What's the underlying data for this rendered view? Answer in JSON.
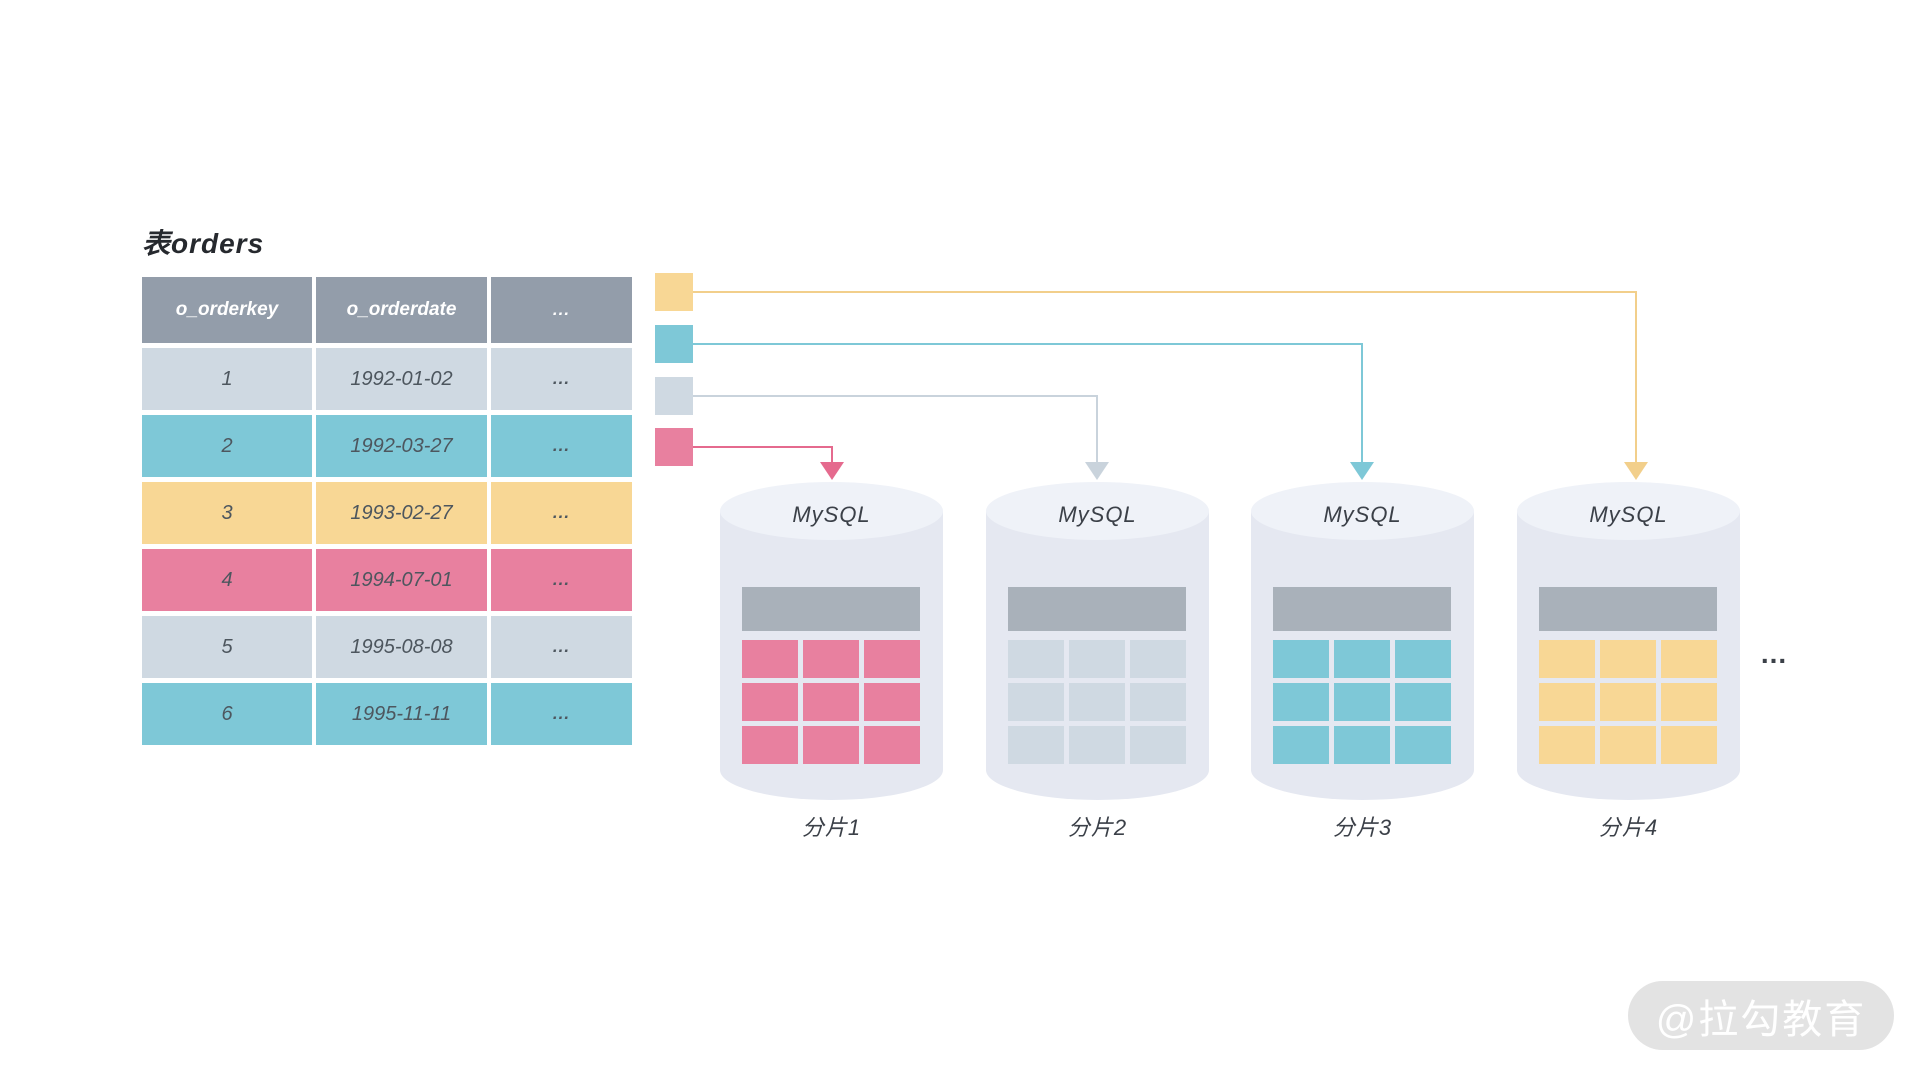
{
  "title": "表orders",
  "table": {
    "headers": [
      "o_orderkey",
      "o_orderdate",
      "..."
    ],
    "rows": [
      {
        "orderkey": "1",
        "orderdate": "1992-01-02",
        "more": "...",
        "color": "lightgray"
      },
      {
        "orderkey": "2",
        "orderdate": "1992-03-27",
        "more": "...",
        "color": "teal"
      },
      {
        "orderkey": "3",
        "orderdate": "1993-02-27",
        "more": "...",
        "color": "yellow"
      },
      {
        "orderkey": "4",
        "orderdate": "1994-07-01",
        "more": "...",
        "color": "pink"
      },
      {
        "orderkey": "5",
        "orderdate": "1995-08-08",
        "more": "...",
        "color": "lightgray"
      },
      {
        "orderkey": "6",
        "orderdate": "1995-11-11",
        "more": "...",
        "color": "teal"
      }
    ]
  },
  "legend": [
    {
      "color": "yellow",
      "target": "分片4"
    },
    {
      "color": "teal",
      "target": "分片3"
    },
    {
      "color": "lightgray",
      "target": "分片2"
    },
    {
      "color": "pink",
      "target": "分片1"
    }
  ],
  "shards": [
    {
      "db_label": "MySQL",
      "name": "分片1",
      "color": "pink"
    },
    {
      "db_label": "MySQL",
      "name": "分片2",
      "color": "lightgray"
    },
    {
      "db_label": "MySQL",
      "name": "分片3",
      "color": "teal"
    },
    {
      "db_label": "MySQL",
      "name": "分片4",
      "color": "yellow"
    }
  ],
  "more_shards_ellipsis": "...",
  "watermark": {
    "text": "@拉勾教育"
  },
  "colors": {
    "table_header": "#939DAA",
    "shard_header": "#A9B1BA",
    "lightgray": "#CFD9E2",
    "teal": "#7EC8D7",
    "yellow": "#F8D795",
    "pink": "#E8809F",
    "line_lightgray": "#C9D3DC",
    "line_teal": "#7EC8D7",
    "line_yellow": "#F2CF8B",
    "line_pink": "#E56A8E",
    "cylinder_body": "#E5E8F1",
    "cylinder_top": "#EFF2F8",
    "watermark_bg": "#E3E3E3"
  }
}
